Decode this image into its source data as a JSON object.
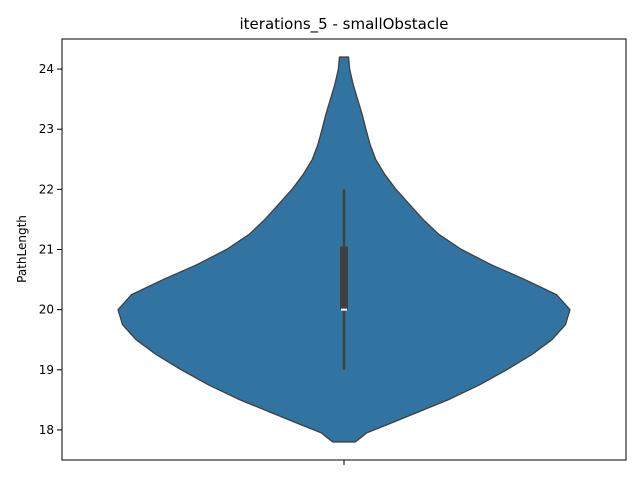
{
  "chart_data": {
    "type": "violin",
    "title": "iterations_5 - smallObstacle",
    "xlabel": "",
    "ylabel": "PathLength",
    "ylim": [
      17.5,
      24.5
    ],
    "yticks": [
      18,
      19,
      20,
      21,
      22,
      23,
      24
    ],
    "grid": false,
    "legend": "none",
    "violin_color": "#3274a1",
    "edge_color": "#3f3f3f",
    "density_profile": [
      {
        "y": 17.8,
        "w": 0.05
      },
      {
        "y": 17.95,
        "w": 0.1
      },
      {
        "y": 18.1,
        "w": 0.2
      },
      {
        "y": 18.3,
        "w": 0.33
      },
      {
        "y": 18.5,
        "w": 0.46
      },
      {
        "y": 18.75,
        "w": 0.6
      },
      {
        "y": 19.0,
        "w": 0.72
      },
      {
        "y": 19.25,
        "w": 0.83
      },
      {
        "y": 19.5,
        "w": 0.92
      },
      {
        "y": 19.75,
        "w": 0.98
      },
      {
        "y": 20.0,
        "w": 1.0
      },
      {
        "y": 20.25,
        "w": 0.94
      },
      {
        "y": 20.5,
        "w": 0.8
      },
      {
        "y": 20.75,
        "w": 0.65
      },
      {
        "y": 21.0,
        "w": 0.52
      },
      {
        "y": 21.25,
        "w": 0.42
      },
      {
        "y": 21.5,
        "w": 0.35
      },
      {
        "y": 21.75,
        "w": 0.29
      },
      {
        "y": 22.0,
        "w": 0.23
      },
      {
        "y": 22.25,
        "w": 0.18
      },
      {
        "y": 22.5,
        "w": 0.14
      },
      {
        "y": 22.75,
        "w": 0.115
      },
      {
        "y": 23.0,
        "w": 0.097
      },
      {
        "y": 23.25,
        "w": 0.08
      },
      {
        "y": 23.5,
        "w": 0.06
      },
      {
        "y": 23.75,
        "w": 0.04
      },
      {
        "y": 24.0,
        "w": 0.025
      },
      {
        "y": 24.2,
        "w": 0.02
      }
    ],
    "box": {
      "whisker_low": 19.0,
      "q1": 20.0,
      "median": 20.0,
      "q3": 21.05,
      "whisker_high": 22.0
    }
  }
}
